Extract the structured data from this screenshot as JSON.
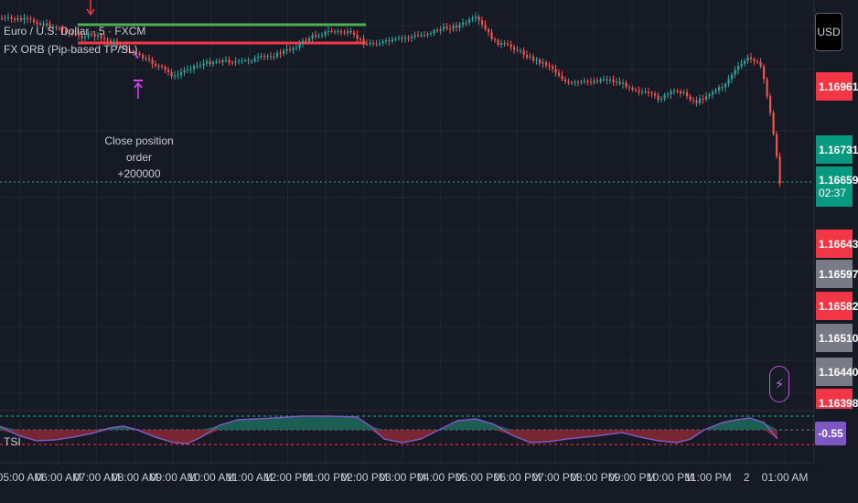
{
  "legend": {
    "symbol": "Euro / U.S. Dollar · 5 · FXCM",
    "indicator": "FX ORB (Pip-based TP/SL)"
  },
  "order_annotation": {
    "line1": "Close position order",
    "line2": "+200000"
  },
  "currency_button": "USD",
  "price_scale": {
    "tags": [
      {
        "id": "p1",
        "value": "1.16961",
        "color": "#f23645"
      },
      {
        "id": "p2",
        "value": "1.16731",
        "color": "#089981"
      },
      {
        "id": "p3",
        "value": "1.16659",
        "countdown": "02:37",
        "color": "#089981"
      },
      {
        "id": "p4",
        "value": "1.16643",
        "color": "#f23645"
      },
      {
        "id": "p5",
        "value": "1.16597",
        "color": "#787b86"
      },
      {
        "id": "p6",
        "value": "1.16582",
        "color": "#f23645"
      },
      {
        "id": "p7",
        "value": "1.16510",
        "color": "#787b86"
      },
      {
        "id": "p8",
        "value": "1.16440",
        "color": "#787b86"
      },
      {
        "id": "p9",
        "value": "1.16398",
        "color": "#f23645"
      }
    ]
  },
  "tsi": {
    "label": "TSI",
    "value": "-0.55",
    "color": "#7e57c2"
  },
  "time_axis": {
    "labels": [
      "05:00 AM",
      "06:00 AM",
      "07:00 AM",
      "08:00 AM",
      "09:00 AM",
      "10:00 AM",
      "11:00 AM",
      "12:00 PM",
      "01:00 PM",
      "02:00 PM",
      "03:00 PM",
      "04:00 PM",
      "05:00 PM",
      "06:00 PM",
      "07:00 PM",
      "08:00 PM",
      "09:00 PM",
      "10:00 PM",
      "11:00 PM",
      "2",
      "01:00 AM"
    ]
  },
  "colors": {
    "background": "#161a25",
    "up": "#26a69a",
    "down": "#ef5350",
    "tp_line": "#4caf50",
    "sl_line": "#f23645",
    "marker": "#e040fb"
  }
}
